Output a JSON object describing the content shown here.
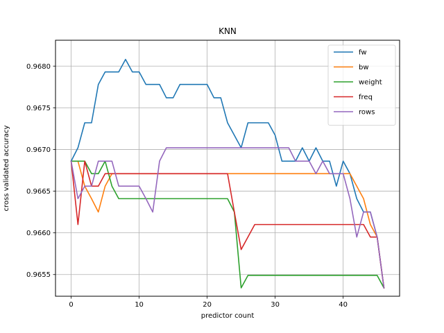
{
  "chart_data": {
    "type": "line",
    "title": "KNN",
    "xlabel": "predictor count",
    "ylabel": "cross validated accuracy",
    "xlim": [
      -2.3,
      48.3
    ],
    "ylim": [
      0.96524,
      0.96831
    ],
    "xticks": [
      0,
      10,
      20,
      30,
      40
    ],
    "yticks": [
      0.9655,
      0.966,
      0.9665,
      0.967,
      0.9675,
      0.968
    ],
    "ytick_labels": [
      "0.9655",
      "0.9660",
      "0.9665",
      "0.9670",
      "0.9675",
      "0.9680"
    ],
    "grid": true,
    "legend_position": "top-right",
    "x": [
      0,
      1,
      2,
      3,
      4,
      5,
      6,
      7,
      8,
      9,
      10,
      11,
      12,
      13,
      14,
      15,
      16,
      17,
      18,
      19,
      20,
      21,
      22,
      23,
      24,
      25,
      26,
      27,
      28,
      29,
      30,
      31,
      32,
      33,
      34,
      35,
      36,
      37,
      38,
      39,
      40,
      41,
      42,
      43,
      44,
      45,
      46
    ],
    "series": [
      {
        "name": "fw",
        "color": "#1f77b4",
        "values": [
          0.96686,
          0.96702,
          0.96732,
          0.96732,
          0.96778,
          0.96793,
          0.96793,
          0.96793,
          0.96808,
          0.96793,
          0.96793,
          0.96778,
          0.96778,
          0.96778,
          0.96762,
          0.96762,
          0.96778,
          0.96778,
          0.96778,
          0.96778,
          0.96778,
          0.96762,
          0.96762,
          0.96732,
          0.96717,
          0.96702,
          0.96732,
          0.96732,
          0.96732,
          0.96732,
          0.96717,
          0.96686,
          0.96686,
          0.96686,
          0.96702,
          0.96686,
          0.96702,
          0.96686,
          0.96686,
          0.96656,
          0.96686,
          0.96671,
          0.96641,
          0.96625,
          0.96625,
          0.96595,
          0.96534
        ]
      },
      {
        "name": "bw",
        "color": "#ff7f0e",
        "values": [
          0.96686,
          0.96686,
          0.96656,
          0.96641,
          0.96625,
          0.96656,
          0.96671,
          0.96671,
          0.96671,
          0.96671,
          0.96671,
          0.96671,
          0.96671,
          0.96671,
          0.96671,
          0.96671,
          0.96671,
          0.96671,
          0.96671,
          0.96671,
          0.96671,
          0.96671,
          0.96671,
          0.96671,
          0.96671,
          0.96671,
          0.96671,
          0.96671,
          0.96671,
          0.96671,
          0.96671,
          0.96671,
          0.96671,
          0.96671,
          0.96671,
          0.96671,
          0.96671,
          0.96671,
          0.96671,
          0.96671,
          0.96671,
          0.96671,
          0.96656,
          0.96641,
          0.9661,
          0.96595,
          0.96534
        ]
      },
      {
        "name": "weight",
        "color": "#2ca02c",
        "values": [
          0.96686,
          0.96686,
          0.96686,
          0.96671,
          0.96671,
          0.96686,
          0.96656,
          0.96641,
          0.96641,
          0.96641,
          0.96641,
          0.96641,
          0.96641,
          0.96641,
          0.96641,
          0.96641,
          0.96641,
          0.96641,
          0.96641,
          0.96641,
          0.96641,
          0.96641,
          0.96641,
          0.96641,
          0.96625,
          0.96534,
          0.96549,
          0.96549,
          0.96549,
          0.96549,
          0.96549,
          0.96549,
          0.96549,
          0.96549,
          0.96549,
          0.96549,
          0.96549,
          0.96549,
          0.96549,
          0.96549,
          0.96549,
          0.96549,
          0.96549,
          0.96549,
          0.96549,
          0.96549,
          0.96534
        ]
      },
      {
        "name": "freq",
        "color": "#d62728",
        "values": [
          0.96686,
          0.9661,
          0.96686,
          0.96656,
          0.96656,
          0.96671,
          0.96671,
          0.96671,
          0.96671,
          0.96671,
          0.96671,
          0.96671,
          0.96671,
          0.96671,
          0.96671,
          0.96671,
          0.96671,
          0.96671,
          0.96671,
          0.96671,
          0.96671,
          0.96671,
          0.96671,
          0.96671,
          0.96625,
          0.9658,
          0.96595,
          0.9661,
          0.9661,
          0.9661,
          0.9661,
          0.9661,
          0.9661,
          0.9661,
          0.9661,
          0.9661,
          0.9661,
          0.9661,
          0.9661,
          0.9661,
          0.9661,
          0.9661,
          0.9661,
          0.9661,
          0.96595,
          0.96595,
          0.96534
        ]
      },
      {
        "name": "rows",
        "color": "#9467bd",
        "values": [
          0.96686,
          0.96641,
          0.96656,
          0.96656,
          0.96686,
          0.96686,
          0.96686,
          0.96656,
          0.96656,
          0.96656,
          0.96656,
          0.96641,
          0.96625,
          0.96686,
          0.96702,
          0.96702,
          0.96702,
          0.96702,
          0.96702,
          0.96702,
          0.96702,
          0.96702,
          0.96702,
          0.96702,
          0.96702,
          0.96702,
          0.96702,
          0.96702,
          0.96702,
          0.96702,
          0.96702,
          0.96702,
          0.96702,
          0.96686,
          0.96686,
          0.96686,
          0.96671,
          0.96686,
          0.96671,
          0.96671,
          0.96671,
          0.96641,
          0.96595,
          0.96625,
          0.96625,
          0.96595,
          0.96534
        ]
      }
    ]
  }
}
